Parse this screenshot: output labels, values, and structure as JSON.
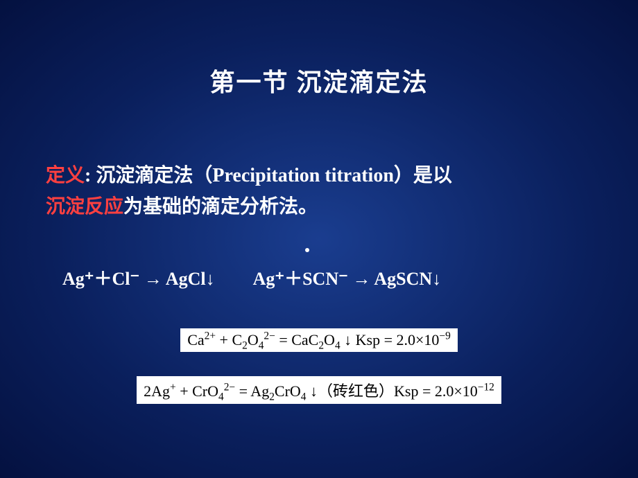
{
  "title": "第一节  沉淀滴定法",
  "definition": {
    "label": "定义",
    "colon": ": ",
    "part1": "沉淀滴定法（",
    "en": "Precipitation titration",
    "part2": "）是以",
    "key": "沉淀反应",
    "part3": "为基础的滴定分析法。"
  },
  "reactions": {
    "r1": "Ag⁺＋Cl⁻ → AgCl↓",
    "r2": "Ag⁺＋SCN⁻ → AgSCN↓"
  },
  "equations": {
    "eq1_html": "Ca<sup>2+</sup> + C<sub>2</sub>O<sub>4</sub><sup>2−</sup> = CaC<sub>2</sub>O<sub>4</sub> ↓ Ksp = 2.0×10<sup>−9</sup>",
    "eq2_html": "2Ag<sup>+</sup> + CrO<sub>4</sub><sup>2−</sup> = Ag<sub>2</sub>CrO<sub>4</sub> ↓（砖红色）Ksp = 2.0×10<sup>−12</sup>"
  },
  "style": {
    "bg_center": "#1a3d8f",
    "bg_edge": "#041140",
    "title_color": "#ffffff",
    "accent_color": "#ff4040",
    "text_color": "#ffffff",
    "eq_bg": "#ffffff",
    "eq_text": "#000000",
    "title_fontsize": 36,
    "body_fontsize": 28,
    "reaction_fontsize": 26,
    "eq_fontsize": 22
  }
}
